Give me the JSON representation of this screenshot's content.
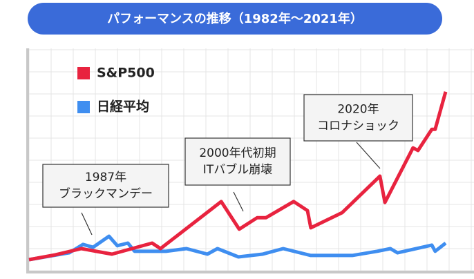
{
  "chart_data": {
    "type": "line",
    "title": "パフォーマンスの推移（1982年～2021年）",
    "xlim": [
      0,
      100
    ],
    "ylim": [
      0,
      100
    ],
    "legend": "upper left",
    "series": [
      {
        "name": "S&P500",
        "color": "#e8233f",
        "x": [
          0,
          6.3,
          12.5,
          19.8,
          29.4,
          31.4,
          45.9,
          50.2,
          54.5,
          56.6,
          63.2,
          66.5,
          67.3,
          74.8,
          83.8,
          85,
          91.7,
          92.9,
          96.2,
          97.0,
          99.5
        ],
        "values": [
          5,
          7.2,
          10,
          7.5,
          12.5,
          10,
          31.3,
          18.8,
          24,
          24,
          31.3,
          27.2,
          19.4,
          26.3,
          42.8,
          30.9,
          55.6,
          54.4,
          64,
          64,
          81
        ]
      },
      {
        "name": "日経平均",
        "color": "#3f8ef0",
        "x": [
          0,
          9.6,
          12.9,
          15.3,
          19.1,
          21.1,
          23.6,
          25.2,
          32.7,
          37.6,
          42.6,
          45.0,
          50.0,
          55.8,
          60.7,
          67.3,
          77.2,
          83.2,
          86.3,
          88.0,
          96.2,
          97.0,
          99.5
        ],
        "values": [
          5,
          8.1,
          11.9,
          10.6,
          15.6,
          11.3,
          12.5,
          8.8,
          8.8,
          10,
          7.5,
          10,
          6.25,
          7.5,
          10,
          6.9,
          6.9,
          8.8,
          10,
          8.1,
          11.6,
          8.8,
          12.5
        ]
      }
    ],
    "annotations": [
      {
        "lines": [
          "1987年",
          "ブラックマンデー"
        ]
      },
      {
        "lines": [
          "2000年代初期",
          "ITバブル崩壊"
        ]
      },
      {
        "lines": [
          "2020年",
          "コロナショック"
        ]
      }
    ]
  }
}
